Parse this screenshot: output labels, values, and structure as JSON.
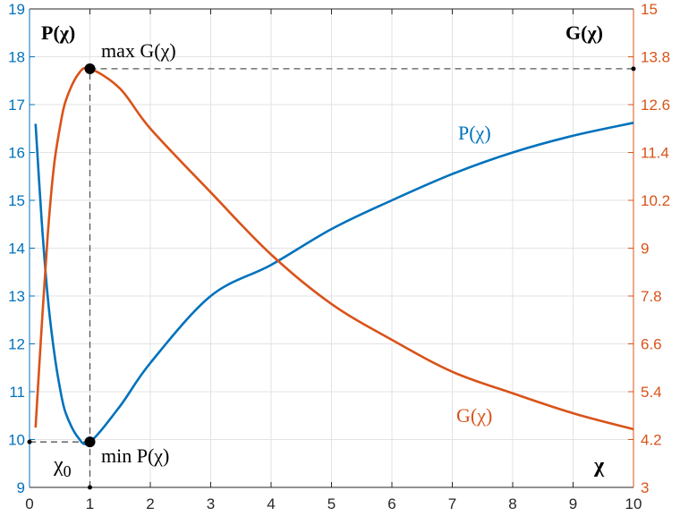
{
  "chart_data": {
    "type": "line",
    "title": "",
    "xlabel": "χ",
    "ylabel_left": "P(χ)",
    "ylabel_right": "G(χ)",
    "xlim": [
      0,
      10
    ],
    "ylim_left": [
      9,
      19
    ],
    "ylim_right": [
      3,
      15
    ],
    "x_ticks": [
      "0",
      "1",
      "2",
      "3",
      "4",
      "5",
      "6",
      "7",
      "8",
      "9",
      "10"
    ],
    "y_ticks_left": [
      "9",
      "10",
      "11",
      "12",
      "13",
      "14",
      "15",
      "16",
      "17",
      "18",
      "19"
    ],
    "y_ticks_right": [
      "3",
      "4.2",
      "5.4",
      "6.6",
      "7.8",
      "9",
      "10.2",
      "11.4",
      "12.6",
      "13.8",
      "15"
    ],
    "grid": true,
    "colors": {
      "P": "#0072BD",
      "G": "#D95319",
      "axis_left": "#0072BD",
      "axis_right": "#D95319"
    },
    "series": [
      {
        "name": "P(χ)",
        "axis": "left",
        "x": [
          0.1,
          0.2,
          0.3,
          0.4,
          0.5,
          0.6,
          0.8,
          1,
          1.5,
          2,
          3,
          4,
          5,
          6,
          7,
          8,
          9,
          10
        ],
        "y": [
          16.6,
          14.6,
          13.0,
          11.9,
          11.1,
          10.55,
          10.05,
          9.95,
          10.7,
          11.6,
          13.0,
          13.65,
          14.4,
          15.0,
          15.55,
          16.0,
          16.35,
          16.62
        ]
      },
      {
        "name": "G(χ)",
        "axis": "right",
        "x": [
          0.1,
          0.2,
          0.3,
          0.4,
          0.5,
          0.6,
          0.8,
          1,
          1.5,
          2,
          3,
          4,
          5,
          6,
          7,
          8,
          9,
          10
        ],
        "y": [
          4.5,
          7.0,
          9.3,
          11.0,
          12.0,
          12.7,
          13.35,
          13.5,
          13.0,
          12.0,
          10.4,
          8.84,
          7.6,
          6.7,
          5.9,
          5.36,
          4.86,
          4.46
        ]
      }
    ],
    "annotations": {
      "max_label": "max G(χ)",
      "min_label": "min P(χ)",
      "x0_label": "χ",
      "x0_sub": "0",
      "P_curve_label": "P(χ)",
      "G_curve_label": "G(χ)",
      "max_point": {
        "x": 1,
        "y_left": 17.75
      },
      "min_point": {
        "x": 1,
        "y_left": 9.95
      }
    }
  }
}
